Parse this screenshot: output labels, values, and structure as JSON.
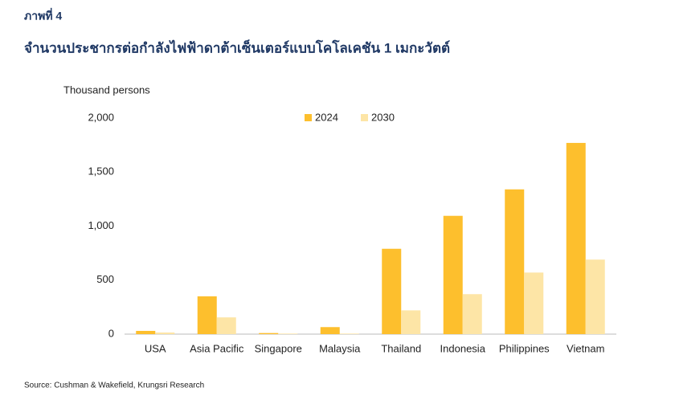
{
  "chart_data": {
    "type": "bar",
    "figure_label": "ภาพที่ 4",
    "title": "จำนวนประชากรต่อกำลังไฟฟ้าดาต้าเซ็นเตอร์แบบโคโลเคชัน 1 เมกะวัตต์",
    "y_axis_label": "Thousand persons",
    "source": "Source: Cushman & Wakefield, Krungsri Research",
    "categories": [
      "USA",
      "Asia Pacific",
      "Singapore",
      "Malaysia",
      "Thailand",
      "Indonesia",
      "Philippines",
      "Vietnam"
    ],
    "series": [
      {
        "name": "2024",
        "color": "#fdbf2d",
        "values": [
          30,
          350,
          10,
          65,
          790,
          1095,
          1340,
          1770
        ]
      },
      {
        "name": "2030",
        "color": "#fde5a6",
        "values": [
          15,
          155,
          5,
          5,
          220,
          370,
          570,
          690
        ]
      }
    ],
    "ylim": [
      0,
      2000
    ],
    "yticks": [
      0,
      500,
      {
        "value": 1000,
        "label": "1,000"
      },
      {
        "value": 1500,
        "label": "1,500"
      },
      {
        "value": 2000,
        "label": "2,000"
      }
    ],
    "grid": false
  }
}
